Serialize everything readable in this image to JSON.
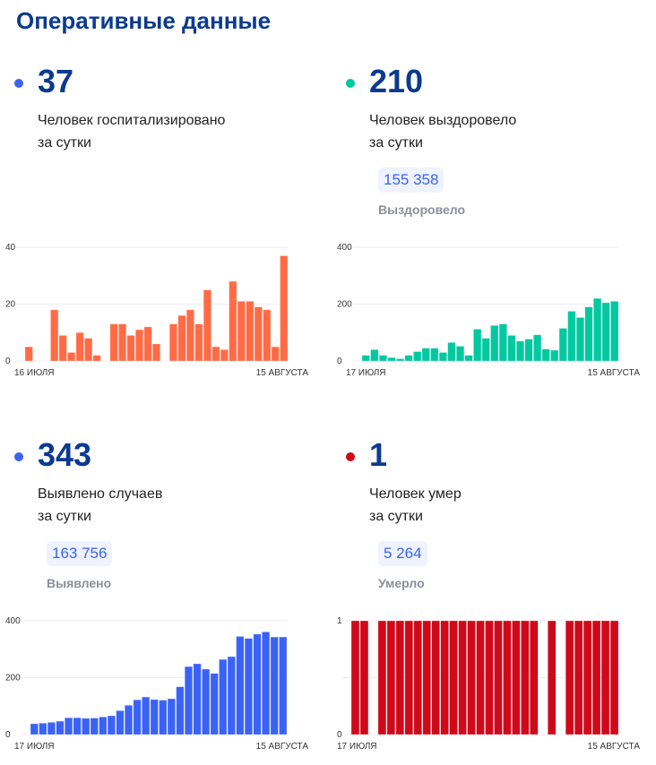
{
  "header": {
    "title": "Оперативные данные"
  },
  "cards": [
    {
      "value": "37",
      "line1": "Человек госпитализировано",
      "line2": "за сутки",
      "color": "#3a63f5"
    },
    {
      "value": "210",
      "line1": "Человек выздоровело",
      "line2": "за сутки",
      "total": "155 358",
      "total_label": "Выздоровело",
      "color": "#00c8a0"
    },
    {
      "value": "343",
      "line1": "Выявлено случаев",
      "line2": "за сутки",
      "total": "163 756",
      "total_label": "Выявлено",
      "color": "#3a63f5"
    },
    {
      "value": "1",
      "line1": "Человек умер",
      "line2": "за сутки",
      "total": "5 264",
      "total_label": "Умерло",
      "color": "#d0091a"
    }
  ],
  "chart_data": [
    {
      "type": "bar",
      "color": "#ff6b45",
      "ylim": [
        0,
        40
      ],
      "yticks": [
        "0",
        "20",
        "40"
      ],
      "x_start": "16 ИЮЛЯ",
      "x_end": "15 АВГУСТА",
      "values": [
        5,
        0,
        0,
        18,
        9,
        3,
        10,
        8,
        2,
        0,
        13,
        13,
        9,
        11,
        12,
        6,
        0,
        13,
        16,
        18,
        13,
        25,
        5,
        4,
        28,
        21,
        21,
        19,
        18,
        5,
        37
      ]
    },
    {
      "type": "bar",
      "color": "#00c8a0",
      "ylim": [
        0,
        400
      ],
      "yticks": [
        "0",
        "200",
        "400"
      ],
      "x_start": "17 ИЮЛЯ",
      "x_end": "15 АВГУСТА",
      "values": [
        20,
        40,
        20,
        12,
        8,
        20,
        33,
        45,
        45,
        30,
        65,
        52,
        20,
        112,
        80,
        125,
        130,
        90,
        70,
        77,
        92,
        42,
        38,
        115,
        175,
        153,
        190,
        220,
        205,
        210
      ]
    },
    {
      "type": "bar",
      "color": "#3a63f5",
      "ylim": [
        0,
        400
      ],
      "yticks": [
        "0",
        "200",
        "400"
      ],
      "x_start": "17 ИЮЛЯ",
      "x_end": "15 АВГУСТА",
      "values": [
        38,
        40,
        43,
        47,
        59,
        59,
        57,
        58,
        62,
        66,
        84,
        103,
        122,
        132,
        123,
        121,
        126,
        168,
        239,
        249,
        230,
        215,
        264,
        274,
        345,
        338,
        353,
        361,
        343,
        343
      ]
    },
    {
      "type": "bar",
      "color": "#d0091a",
      "ylim": [
        0,
        1
      ],
      "yticks": [
        "0",
        "1"
      ],
      "x_start": "17 ИЮЛЯ",
      "x_end": "15 АВГУСТА",
      "values": [
        1,
        1,
        0,
        1,
        1,
        1,
        1,
        1,
        1,
        1,
        1,
        1,
        1,
        1,
        1,
        1,
        1,
        1,
        1,
        1,
        1,
        0,
        1,
        0,
        1,
        1,
        1,
        1,
        1,
        1
      ]
    }
  ]
}
